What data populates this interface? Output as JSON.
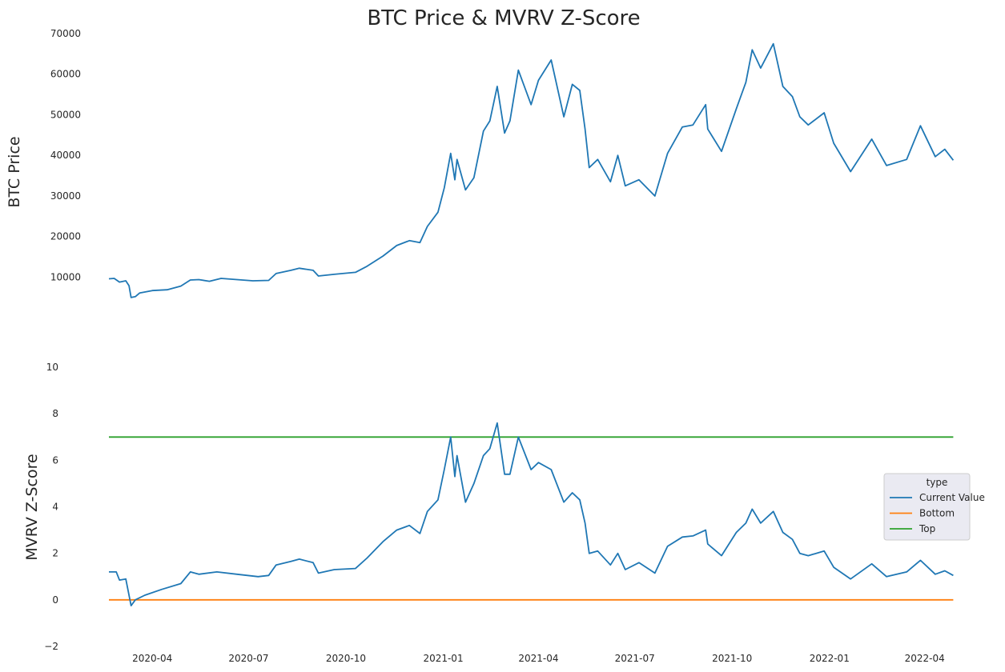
{
  "chart_data": {
    "title": "BTC Price & MVRV Z-Score",
    "x_range": [
      "2020-02-20",
      "2022-04-30"
    ],
    "x_ticks": [
      "2020-04",
      "2020-07",
      "2020-10",
      "2021-01",
      "2021-04",
      "2021-07",
      "2021-10",
      "2022-01",
      "2022-04"
    ],
    "top": {
      "type": "line",
      "ylabel": "BTC  Price",
      "ylim": [
        3000,
        70000
      ],
      "y_ticks": [
        10000,
        20000,
        30000,
        40000,
        50000,
        60000,
        70000
      ],
      "grid": false,
      "color": "#1f77b4",
      "points": [
        [
          "2020-02-20",
          9600
        ],
        [
          "2020-02-25",
          9700
        ],
        [
          "2020-03-01",
          8800
        ],
        [
          "2020-03-07",
          9100
        ],
        [
          "2020-03-10",
          7900
        ],
        [
          "2020-03-12",
          5000
        ],
        [
          "2020-03-16",
          5200
        ],
        [
          "2020-03-20",
          6100
        ],
        [
          "2020-04-01",
          6700
        ],
        [
          "2020-04-15",
          6900
        ],
        [
          "2020-04-28",
          7800
        ],
        [
          "2020-05-07",
          9300
        ],
        [
          "2020-05-15",
          9400
        ],
        [
          "2020-05-25",
          9000
        ],
        [
          "2020-06-05",
          9700
        ],
        [
          "2020-06-20",
          9400
        ],
        [
          "2020-07-05",
          9100
        ],
        [
          "2020-07-20",
          9200
        ],
        [
          "2020-07-27",
          10900
        ],
        [
          "2020-08-10",
          11700
        ],
        [
          "2020-08-18",
          12200
        ],
        [
          "2020-08-31",
          11700
        ],
        [
          "2020-09-05",
          10300
        ],
        [
          "2020-09-20",
          10700
        ],
        [
          "2020-10-10",
          11200
        ],
        [
          "2020-10-21",
          12700
        ],
        [
          "2020-11-05",
          15200
        ],
        [
          "2020-11-18",
          17800
        ],
        [
          "2020-11-30",
          19000
        ],
        [
          "2020-12-10",
          18500
        ],
        [
          "2020-12-17",
          22500
        ],
        [
          "2020-12-27",
          26000
        ],
        [
          "2021-01-02",
          32000
        ],
        [
          "2021-01-08",
          40500
        ],
        [
          "2021-01-12",
          34000
        ],
        [
          "2021-01-14",
          39000
        ],
        [
          "2021-01-22",
          31500
        ],
        [
          "2021-01-30",
          34500
        ],
        [
          "2021-02-08",
          46000
        ],
        [
          "2021-02-14",
          48500
        ],
        [
          "2021-02-21",
          57000
        ],
        [
          "2021-02-28",
          45500
        ],
        [
          "2021-03-05",
          48500
        ],
        [
          "2021-03-13",
          61000
        ],
        [
          "2021-03-25",
          52500
        ],
        [
          "2021-04-01",
          58500
        ],
        [
          "2021-04-13",
          63500
        ],
        [
          "2021-04-25",
          49500
        ],
        [
          "2021-05-03",
          57500
        ],
        [
          "2021-05-10",
          56000
        ],
        [
          "2021-05-15",
          46500
        ],
        [
          "2021-05-19",
          37000
        ],
        [
          "2021-05-27",
          39000
        ],
        [
          "2021-06-08",
          33500
        ],
        [
          "2021-06-15",
          40000
        ],
        [
          "2021-06-22",
          32500
        ],
        [
          "2021-07-05",
          34000
        ],
        [
          "2021-07-20",
          30000
        ],
        [
          "2021-08-01",
          40500
        ],
        [
          "2021-08-15",
          47000
        ],
        [
          "2021-08-25",
          47500
        ],
        [
          "2021-09-06",
          52500
        ],
        [
          "2021-09-08",
          46500
        ],
        [
          "2021-09-21",
          41000
        ],
        [
          "2021-10-05",
          51500
        ],
        [
          "2021-10-14",
          58000
        ],
        [
          "2021-10-20",
          66000
        ],
        [
          "2021-10-28",
          61500
        ],
        [
          "2021-11-09",
          67500
        ],
        [
          "2021-11-18",
          57000
        ],
        [
          "2021-11-27",
          54500
        ],
        [
          "2021-12-04",
          49500
        ],
        [
          "2021-12-12",
          47500
        ],
        [
          "2021-12-27",
          50500
        ],
        [
          "2022-01-05",
          43000
        ],
        [
          "2022-01-21",
          36000
        ],
        [
          "2022-02-10",
          44000
        ],
        [
          "2022-02-24",
          37500
        ],
        [
          "2022-03-15",
          39000
        ],
        [
          "2022-03-28",
          47300
        ],
        [
          "2022-04-11",
          39700
        ],
        [
          "2022-04-20",
          41500
        ],
        [
          "2022-04-28",
          38800
        ]
      ]
    },
    "bottom": {
      "type": "line",
      "ylabel": "MVRV Z-Score",
      "ylim": [
        -2,
        10
      ],
      "y_ticks": [
        -2,
        0,
        2,
        4,
        6,
        8,
        10
      ],
      "grid": false,
      "series": [
        {
          "name": "Current Value",
          "color": "#1f77b4",
          "points": [
            [
              "2020-02-20",
              1.2
            ],
            [
              "2020-02-27",
              1.2
            ],
            [
              "2020-03-01",
              0.85
            ],
            [
              "2020-03-07",
              0.9
            ],
            [
              "2020-03-12",
              -0.25
            ],
            [
              "2020-03-16",
              0.0
            ],
            [
              "2020-03-25",
              0.2
            ],
            [
              "2020-04-10",
              0.45
            ],
            [
              "2020-04-28",
              0.7
            ],
            [
              "2020-05-07",
              1.2
            ],
            [
              "2020-05-15",
              1.1
            ],
            [
              "2020-06-01",
              1.2
            ],
            [
              "2020-06-20",
              1.1
            ],
            [
              "2020-07-10",
              1.0
            ],
            [
              "2020-07-20",
              1.05
            ],
            [
              "2020-07-27",
              1.5
            ],
            [
              "2020-08-10",
              1.65
            ],
            [
              "2020-08-18",
              1.75
            ],
            [
              "2020-08-31",
              1.6
            ],
            [
              "2020-09-05",
              1.15
            ],
            [
              "2020-09-20",
              1.3
            ],
            [
              "2020-10-10",
              1.35
            ],
            [
              "2020-10-21",
              1.8
            ],
            [
              "2020-11-05",
              2.5
            ],
            [
              "2020-11-18",
              3.0
            ],
            [
              "2020-11-30",
              3.2
            ],
            [
              "2020-12-10",
              2.85
            ],
            [
              "2020-12-17",
              3.8
            ],
            [
              "2020-12-27",
              4.3
            ],
            [
              "2021-01-02",
              5.6
            ],
            [
              "2021-01-08",
              7.0
            ],
            [
              "2021-01-12",
              5.3
            ],
            [
              "2021-01-14",
              6.2
            ],
            [
              "2021-01-22",
              4.2
            ],
            [
              "2021-01-30",
              5.0
            ],
            [
              "2021-02-08",
              6.2
            ],
            [
              "2021-02-14",
              6.5
            ],
            [
              "2021-02-21",
              7.6
            ],
            [
              "2021-02-28",
              5.4
            ],
            [
              "2021-03-05",
              5.4
            ],
            [
              "2021-03-13",
              7.0
            ],
            [
              "2021-03-25",
              5.6
            ],
            [
              "2021-04-01",
              5.9
            ],
            [
              "2021-04-13",
              5.6
            ],
            [
              "2021-04-25",
              4.2
            ],
            [
              "2021-05-03",
              4.6
            ],
            [
              "2021-05-10",
              4.3
            ],
            [
              "2021-05-15",
              3.3
            ],
            [
              "2021-05-19",
              2.0
            ],
            [
              "2021-05-27",
              2.1
            ],
            [
              "2021-06-08",
              1.5
            ],
            [
              "2021-06-15",
              2.0
            ],
            [
              "2021-06-22",
              1.3
            ],
            [
              "2021-07-05",
              1.6
            ],
            [
              "2021-07-20",
              1.15
            ],
            [
              "2021-08-01",
              2.3
            ],
            [
              "2021-08-15",
              2.7
            ],
            [
              "2021-08-25",
              2.75
            ],
            [
              "2021-09-06",
              3.0
            ],
            [
              "2021-09-08",
              2.4
            ],
            [
              "2021-09-21",
              1.9
            ],
            [
              "2021-10-05",
              2.9
            ],
            [
              "2021-10-14",
              3.3
            ],
            [
              "2021-10-20",
              3.9
            ],
            [
              "2021-10-28",
              3.3
            ],
            [
              "2021-11-09",
              3.8
            ],
            [
              "2021-11-18",
              2.9
            ],
            [
              "2021-11-27",
              2.6
            ],
            [
              "2021-12-04",
              2.0
            ],
            [
              "2021-12-12",
              1.9
            ],
            [
              "2021-12-27",
              2.1
            ],
            [
              "2022-01-05",
              1.4
            ],
            [
              "2022-01-21",
              0.9
            ],
            [
              "2022-02-10",
              1.55
            ],
            [
              "2022-02-24",
              1.0
            ],
            [
              "2022-03-15",
              1.2
            ],
            [
              "2022-03-28",
              1.7
            ],
            [
              "2022-04-11",
              1.1
            ],
            [
              "2022-04-20",
              1.25
            ],
            [
              "2022-04-28",
              1.05
            ]
          ]
        },
        {
          "name": "Bottom",
          "color": "#ff7f0e",
          "points": [
            [
              "2020-02-20",
              0
            ],
            [
              "2022-04-28",
              0
            ]
          ]
        },
        {
          "name": "Top",
          "color": "#2ca02c",
          "points": [
            [
              "2020-02-20",
              7
            ],
            [
              "2022-04-28",
              7
            ]
          ]
        }
      ]
    },
    "legend": {
      "title": "type",
      "placement": "center-right"
    }
  }
}
